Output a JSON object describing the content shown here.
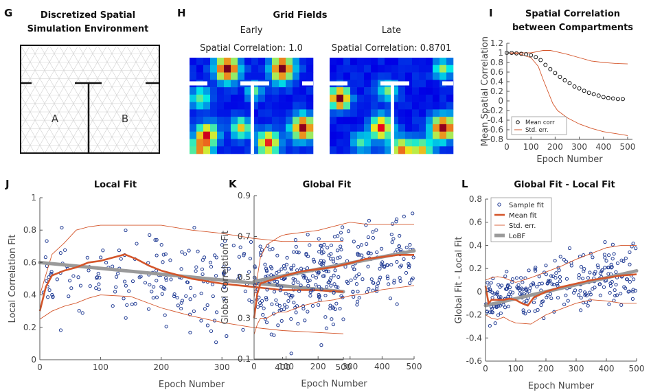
{
  "colors": {
    "scatter": "#1f3a93",
    "mean": "#d4552a",
    "err": "#d4552a",
    "lobf": "#9a9a9a",
    "heat_bg": "#1e2a8f"
  },
  "panel_g": {
    "label": "G",
    "title_line1": "Discretized Spatial",
    "title_line2": "Simulation Environment",
    "room_a": "A",
    "room_b": "B"
  },
  "panel_h": {
    "label": "H",
    "title": "Grid Fields",
    "early_label": "Early",
    "late_label": "Late",
    "early_corr": "Spatial Correlation: 1.0",
    "late_corr": "Spatial Correlation: 0.8701"
  },
  "chart_data": [
    {
      "id": "I",
      "label": "I",
      "type": "scatter",
      "title_line1": "Spatial Correlation",
      "title_line2": "between Compartments",
      "xlabel": "Epoch Number",
      "ylabel": "Mean Spatial Correlation",
      "xlim": [
        0,
        520
      ],
      "ylim": [
        -0.8,
        1.2
      ],
      "xticks": [
        0,
        100,
        200,
        300,
        400,
        500
      ],
      "yticks": [
        -0.8,
        -0.6,
        -0.4,
        -0.2,
        0,
        0.2,
        0.4,
        0.6,
        0.8,
        1,
        1.2
      ],
      "ytick_labels": [
        "-0.8",
        "-0.6",
        "-0.4",
        "-0.2",
        "0",
        "0.2",
        "0.4",
        "0.6",
        "0.8",
        "1",
        "1.2"
      ],
      "legend": [
        "Mean corr",
        "Std. err."
      ],
      "mean": {
        "x": [
          0,
          20,
          40,
          60,
          80,
          100,
          120,
          140,
          160,
          180,
          200,
          220,
          240,
          260,
          280,
          300,
          320,
          340,
          360,
          380,
          400,
          420,
          440,
          460,
          480
        ],
        "y": [
          1.0,
          1.0,
          0.99,
          0.98,
          0.97,
          0.95,
          0.91,
          0.85,
          0.75,
          0.66,
          0.58,
          0.5,
          0.43,
          0.37,
          0.3,
          0.26,
          0.21,
          0.17,
          0.14,
          0.11,
          0.08,
          0.06,
          0.05,
          0.04,
          0.04
        ]
      },
      "upper": {
        "x": [
          0,
          50,
          100,
          150,
          180,
          200,
          250,
          300,
          350,
          400,
          450,
          500
        ],
        "y": [
          1.0,
          1.0,
          1.0,
          1.05,
          1.05,
          1.03,
          0.97,
          0.9,
          0.83,
          0.8,
          0.78,
          0.77
        ]
      },
      "lower": {
        "x": [
          0,
          50,
          100,
          130,
          150,
          170,
          190,
          210,
          250,
          300,
          350,
          400,
          450,
          500
        ],
        "y": [
          1.0,
          0.98,
          0.9,
          0.72,
          0.45,
          0.2,
          -0.05,
          -0.2,
          -0.35,
          -0.48,
          -0.57,
          -0.64,
          -0.68,
          -0.72
        ]
      }
    },
    {
      "id": "J",
      "label": "J",
      "type": "scatter",
      "title": "Local Fit",
      "xlabel": "Epoch Number",
      "ylabel": "Local Correlation Fit",
      "xlim": [
        0,
        500
      ],
      "ylim": [
        0,
        1
      ],
      "xticks": [
        0,
        100,
        200,
        300,
        400,
        500
      ],
      "yticks": [
        0,
        0.2,
        0.4,
        0.6,
        0.8,
        1
      ],
      "ytick_labels": [
        "0",
        "0.2",
        "0.4",
        "0.6",
        "0.8",
        "1"
      ],
      "scatter_spec": {
        "n": 260,
        "seed": 11,
        "start": 0.48,
        "end": 0.42,
        "peak_x": 150,
        "peak_y": 0.6,
        "spread": 0.2,
        "spread_growth": 0.1
      },
      "mean": {
        "x": [
          0,
          10,
          20,
          40,
          60,
          80,
          100,
          120,
          140,
          160,
          180,
          200,
          250,
          300,
          350,
          400,
          450,
          500
        ],
        "y": [
          0.3,
          0.45,
          0.52,
          0.55,
          0.57,
          0.6,
          0.61,
          0.63,
          0.65,
          0.62,
          0.58,
          0.55,
          0.5,
          0.47,
          0.45,
          0.43,
          0.43,
          0.42
        ]
      },
      "upper": {
        "x": [
          0,
          20,
          40,
          60,
          80,
          100,
          150,
          200,
          250,
          300,
          350,
          400,
          450,
          500
        ],
        "y": [
          0.4,
          0.65,
          0.72,
          0.8,
          0.82,
          0.83,
          0.83,
          0.83,
          0.8,
          0.78,
          0.75,
          0.73,
          0.73,
          0.73
        ]
      },
      "lower": {
        "x": [
          0,
          20,
          40,
          60,
          80,
          100,
          150,
          200,
          250,
          300,
          350,
          400,
          450,
          500
        ],
        "y": [
          0.25,
          0.3,
          0.33,
          0.35,
          0.38,
          0.4,
          0.39,
          0.32,
          0.27,
          0.23,
          0.2,
          0.18,
          0.17,
          0.16
        ]
      },
      "lobf": {
        "x": [
          0,
          500
        ],
        "y": [
          0.6,
          0.42
        ]
      }
    },
    {
      "id": "K",
      "label": "K",
      "type": "scatter",
      "title": "Global Fit",
      "xlabel": "Epoch Number",
      "ylabel": "Global Correlation Fit",
      "xlim": [
        0,
        500
      ],
      "ylim": [
        0.1,
        0.9
      ],
      "xticks": [
        0,
        100,
        200,
        300,
        400,
        500
      ],
      "yticks": [
        0.1,
        0.3,
        0.5,
        0.7,
        0.9
      ],
      "ytick_labels": [
        "0.1",
        "0.3",
        "0.5",
        "0.7",
        "0.9"
      ],
      "scatter_spec": {
        "n": 260,
        "seed": 23,
        "start": 0.47,
        "end": 0.6,
        "peak_x": 0,
        "peak_y": 0,
        "spread": 0.16,
        "spread_growth": 0.02
      },
      "mean": {
        "x": [
          0,
          10,
          20,
          40,
          60,
          80,
          100,
          150,
          200,
          250,
          300,
          350,
          400,
          450,
          500
        ],
        "y": [
          0.3,
          0.42,
          0.47,
          0.48,
          0.49,
          0.5,
          0.51,
          0.53,
          0.54,
          0.55,
          0.57,
          0.59,
          0.6,
          0.61,
          0.61
        ]
      },
      "upper": {
        "x": [
          0,
          20,
          40,
          60,
          80,
          100,
          150,
          200,
          250,
          300,
          350,
          400,
          450,
          500
        ],
        "y": [
          0.4,
          0.6,
          0.66,
          0.68,
          0.7,
          0.71,
          0.72,
          0.73,
          0.75,
          0.77,
          0.76,
          0.76,
          0.76,
          0.76
        ]
      },
      "lower": {
        "x": [
          0,
          10,
          20,
          40,
          60,
          80,
          100,
          150,
          200,
          250,
          300,
          350,
          400,
          450,
          500
        ],
        "y": [
          0.22,
          0.27,
          0.3,
          0.3,
          0.32,
          0.33,
          0.33,
          0.36,
          0.38,
          0.39,
          0.41,
          0.42,
          0.44,
          0.45,
          0.46
        ]
      },
      "lobf": {
        "x": [
          0,
          500
        ],
        "y": [
          0.48,
          0.63
        ]
      }
    },
    {
      "id": "L",
      "label": "L",
      "type": "scatter",
      "title": "Global Fit - Local Fit",
      "xlabel": "Epoch Number",
      "ylabel": "Global Fit - Local Fit",
      "xlim": [
        0,
        500
      ],
      "ylim": [
        -0.6,
        0.8
      ],
      "xticks": [
        0,
        100,
        200,
        300,
        400,
        500
      ],
      "yticks": [
        -0.6,
        -0.4,
        -0.2,
        0,
        0.2,
        0.4,
        0.6,
        0.8
      ],
      "ytick_labels": [
        "-0.6",
        "-0.4",
        "-0.2",
        "0",
        "0.2",
        "0.4",
        "0.6",
        "0.8"
      ],
      "legend": [
        "Sample fit",
        "Mean fit",
        "Std. err.",
        "LoBF"
      ],
      "scatter_spec": {
        "n": 260,
        "seed": 37,
        "start": -0.08,
        "end": 0.17,
        "peak_x": 0,
        "peak_y": 0,
        "spread": 0.18,
        "spread_growth": 0.05
      },
      "mean": {
        "x": [
          0,
          10,
          20,
          40,
          60,
          80,
          100,
          120,
          140,
          160,
          200,
          250,
          300,
          350,
          400,
          450,
          500
        ],
        "y": [
          0.05,
          -0.1,
          -0.07,
          -0.07,
          -0.07,
          -0.06,
          -0.07,
          -0.1,
          -0.12,
          -0.05,
          0.0,
          0.04,
          0.07,
          0.1,
          0.12,
          0.14,
          0.15
        ]
      },
      "upper": {
        "x": [
          0,
          20,
          40,
          60,
          80,
          100,
          150,
          200,
          250,
          300,
          350,
          400,
          450,
          500
        ],
        "y": [
          0.1,
          0.12,
          0.13,
          0.12,
          0.1,
          0.08,
          0.12,
          0.17,
          0.22,
          0.28,
          0.33,
          0.38,
          0.4,
          0.4
        ]
      },
      "lower": {
        "x": [
          0,
          20,
          40,
          60,
          80,
          100,
          150,
          200,
          250,
          300,
          350,
          400,
          450,
          500
        ],
        "y": [
          -0.2,
          -0.23,
          -0.24,
          -0.22,
          -0.25,
          -0.27,
          -0.28,
          -0.2,
          -0.15,
          -0.1,
          -0.07,
          -0.08,
          -0.1,
          -0.1
        ]
      },
      "lobf": {
        "x": [
          0,
          500
        ],
        "y": [
          -0.12,
          0.18
        ]
      }
    }
  ]
}
